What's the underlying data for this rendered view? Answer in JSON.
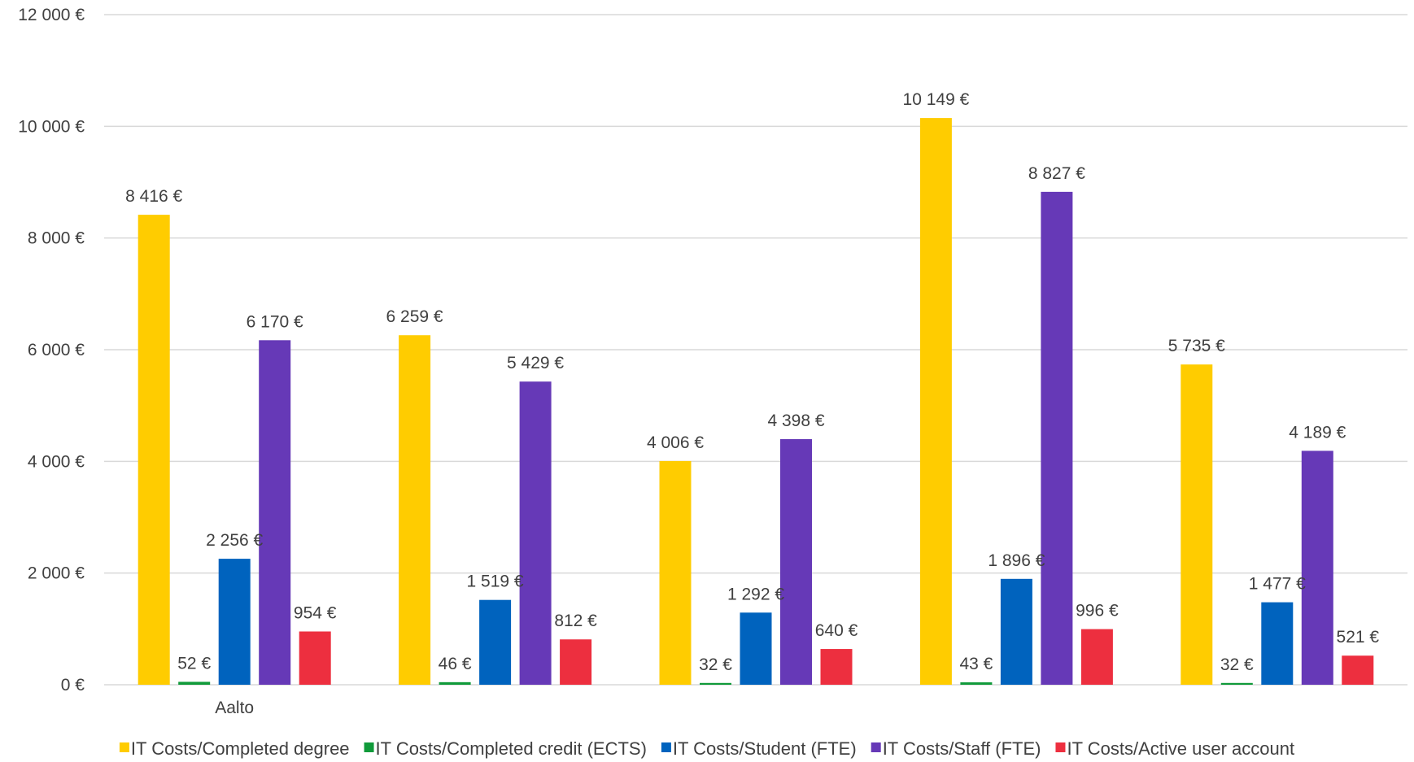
{
  "chart_data": {
    "type": "bar",
    "categories": [
      "Aalto",
      "",
      "",
      "",
      ""
    ],
    "series": [
      {
        "name": "IT Costs/Completed degree",
        "color": "#FFCC00",
        "values": [
          8416,
          6259,
          4006,
          10149,
          5735
        ],
        "labels": [
          "8 416 €",
          "6 259 €",
          "4 006 €",
          "10 149 €",
          "5 735 €"
        ]
      },
      {
        "name": "IT Costs/Completed credit (ECTS)",
        "color": "#109A3A",
        "values": [
          52,
          46,
          32,
          43,
          32
        ],
        "labels": [
          "52 €",
          "46 €",
          "32 €",
          "43 €",
          "32 €"
        ]
      },
      {
        "name": "IT Costs/Student (FTE)",
        "color": "#0063BE",
        "values": [
          2256,
          1519,
          1292,
          1896,
          1477
        ],
        "labels": [
          "2 256 €",
          "1 519 €",
          "1 292 €",
          "1 896 €",
          "1 477 €"
        ]
      },
      {
        "name": "IT Costs/Staff (FTE)",
        "color": "#6639B7",
        "values": [
          6170,
          5429,
          4398,
          8827,
          4189
        ],
        "labels": [
          "6 170 €",
          "5 429 €",
          "4 398 €",
          "8 827 €",
          "4 189 €"
        ]
      },
      {
        "name": "IT Costs/Active user account",
        "color": "#ED2F3F",
        "values": [
          954,
          812,
          640,
          996,
          521
        ],
        "labels": [
          "954 €",
          "812 €",
          "640 €",
          "996 €",
          "521 €"
        ]
      }
    ],
    "ylim": [
      0,
      12000
    ],
    "yticks": [
      0,
      2000,
      4000,
      6000,
      8000,
      10000,
      12000
    ],
    "ytick_labels": [
      "0 €",
      "2 000 €",
      "4 000 €",
      "6 000 €",
      "8 000 €",
      "10 000 €",
      "12 000 €"
    ],
    "grid": true,
    "legend_position": "bottom"
  }
}
